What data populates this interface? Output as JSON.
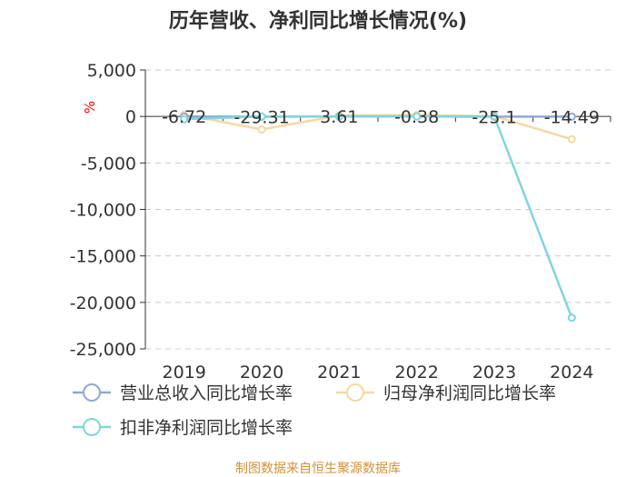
{
  "chart_data": {
    "type": "line",
    "title": "历年营收、净利同比增长情况(%)",
    "ylabel": "%",
    "categories": [
      "2019",
      "2020",
      "2021",
      "2022",
      "2023",
      "2024"
    ],
    "ylim": [
      -25000,
      5000
    ],
    "yticks": [
      5000,
      0,
      -5000,
      -10000,
      -15000,
      -20000,
      -25000
    ],
    "ytick_labels": [
      "5,000",
      "0",
      "-5,000",
      "-10,000",
      "-15,000",
      "-20,000",
      "-25,000"
    ],
    "grid": true,
    "legend_position": "bottom",
    "series": [
      {
        "name": "营业总收入同比增长率",
        "color": "#8fa8d8",
        "values": [
          -6.72,
          -29.31,
          3.61,
          -0.38,
          -25.1,
          -14.49
        ],
        "labels": [
          "-6.72",
          "-29.31",
          "3.61",
          "-0.38",
          "-25.1",
          "-14.49"
        ]
      },
      {
        "name": "归母净利润同比增长率",
        "color": "#f7d9a0",
        "values": [
          200,
          -1400,
          100,
          150,
          30,
          -2450
        ]
      },
      {
        "name": "扣非净利润同比增长率",
        "color": "#7fd6dc",
        "values": [
          -300,
          0,
          0,
          0,
          0,
          -21650
        ]
      }
    ]
  },
  "source_text": "制图数据来自恒生聚源数据库"
}
